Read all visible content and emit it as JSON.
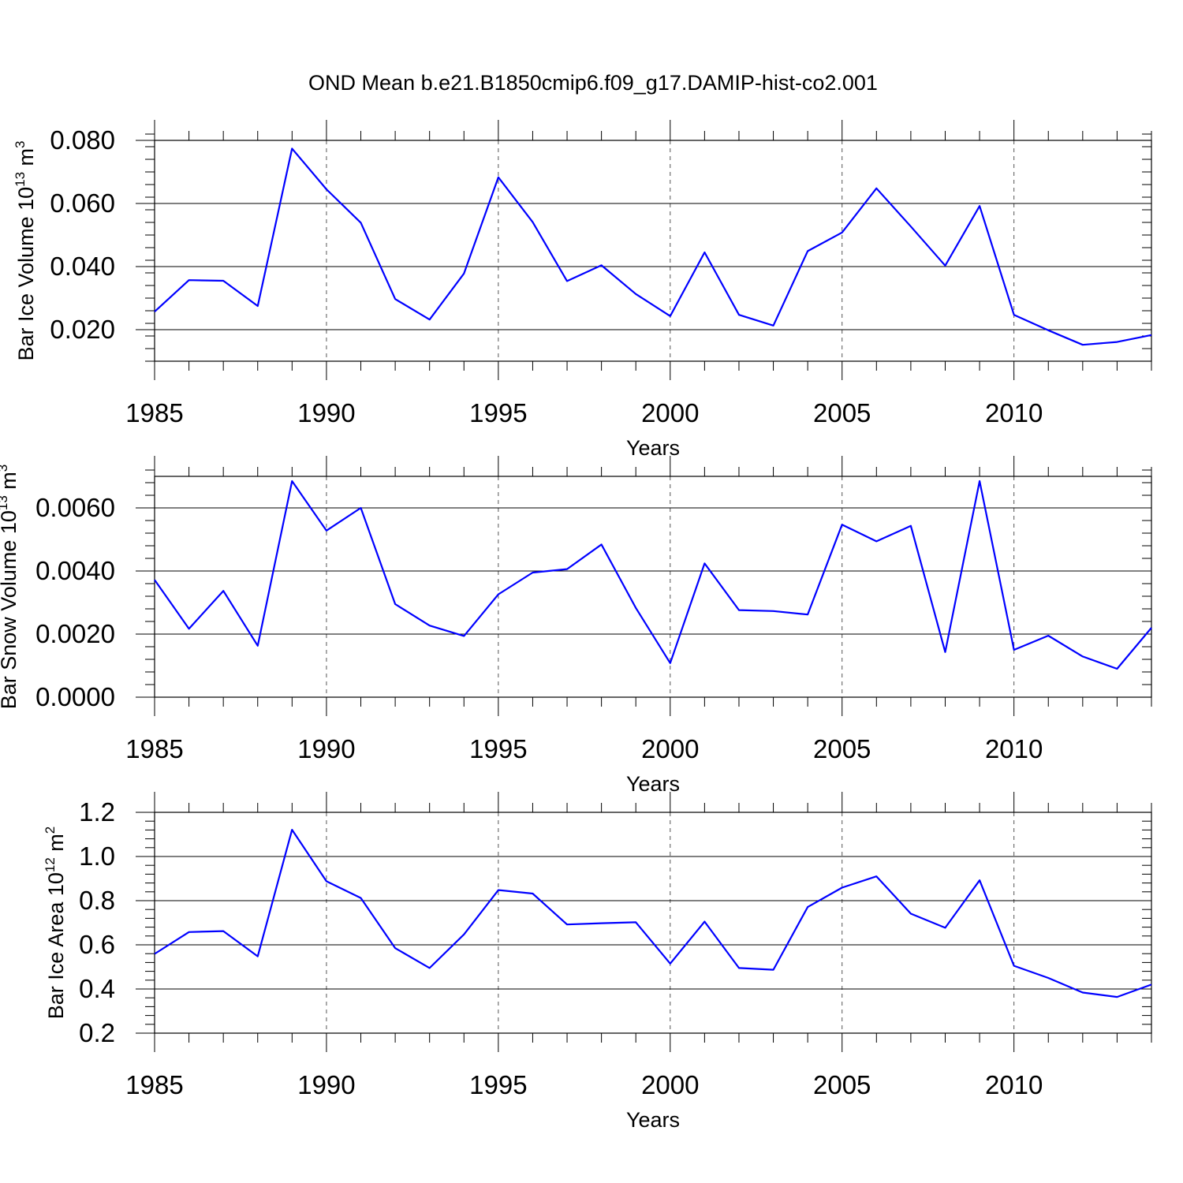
{
  "figure_title": "OND Mean b.e21.B1850cmip6.f09_g17.DAMIP-hist-co2.001",
  "colors": {
    "series": "#0000ff",
    "axis": "#000000",
    "grid": "#555555"
  },
  "chart_data": [
    {
      "type": "line",
      "title": "OND Mean b.e21.B1850cmip6.f09_g17.DAMIP-hist-co2.001",
      "ylabel_main": "Bar Ice Volume 10",
      "ylabel_exp": "13",
      "ylabel_unit": " m",
      "ylabel_unit_exp": "3",
      "xlabel": "Years",
      "xlim": [
        1985,
        2014
      ],
      "ylim": [
        0.01,
        0.08
      ],
      "xticks": [
        1985,
        1990,
        1995,
        2000,
        2005,
        2010
      ],
      "xtick_labels": [
        "1985",
        "1990",
        "1995",
        "2000",
        "2005",
        "2010"
      ],
      "yticks": [
        0.02,
        0.04,
        0.06,
        0.08
      ],
      "ytick_labels": [
        "0.020",
        "0.040",
        "0.060",
        "0.080"
      ],
      "grid_x": [
        1990,
        1995,
        2000,
        2005,
        2010
      ],
      "x": [
        1985,
        1986,
        1987,
        1988,
        1989,
        1990,
        1991,
        1992,
        1993,
        1994,
        1995,
        1996,
        1997,
        1998,
        1999,
        2000,
        2001,
        2002,
        2003,
        2004,
        2005,
        2006,
        2007,
        2008,
        2009,
        2010,
        2011,
        2012,
        2013,
        2014
      ],
      "values": [
        0.0257,
        0.0357,
        0.0355,
        0.0275,
        0.0774,
        0.0645,
        0.0539,
        0.0297,
        0.0232,
        0.0378,
        0.0683,
        0.0541,
        0.0354,
        0.0404,
        0.0313,
        0.0243,
        0.0445,
        0.0247,
        0.0213,
        0.0449,
        0.0508,
        0.0648,
        0.0527,
        0.0403,
        0.0592,
        0.0247,
        0.0198,
        0.0152,
        0.0161,
        0.0183
      ]
    },
    {
      "type": "line",
      "ylabel_main": "Bar Snow Volume 10",
      "ylabel_exp": "13",
      "ylabel_unit": " m",
      "ylabel_unit_exp": "3",
      "xlabel": "Years",
      "xlim": [
        1985,
        2014
      ],
      "ylim": [
        0.0,
        0.007
      ],
      "xticks": [
        1985,
        1990,
        1995,
        2000,
        2005,
        2010
      ],
      "xtick_labels": [
        "1985",
        "1990",
        "1995",
        "2000",
        "2005",
        "2010"
      ],
      "yticks": [
        0.0,
        0.002,
        0.004,
        0.006
      ],
      "ytick_labels": [
        "0.0000",
        "0.0020",
        "0.0040",
        "0.0060"
      ],
      "grid_x": [
        1990,
        1995,
        2000,
        2005,
        2010
      ],
      "x": [
        1985,
        1986,
        1987,
        1988,
        1989,
        1990,
        1991,
        1992,
        1993,
        1994,
        1995,
        1996,
        1997,
        1998,
        1999,
        2000,
        2001,
        2002,
        2003,
        2004,
        2005,
        2006,
        2007,
        2008,
        2009,
        2010,
        2011,
        2012,
        2013,
        2014
      ],
      "values": [
        0.00372,
        0.00217,
        0.00337,
        0.00163,
        0.00685,
        0.00528,
        0.006,
        0.00295,
        0.00227,
        0.00194,
        0.00326,
        0.00395,
        0.00406,
        0.00484,
        0.00283,
        0.00108,
        0.00424,
        0.00276,
        0.00273,
        0.00262,
        0.00547,
        0.00494,
        0.00543,
        0.00143,
        0.00685,
        0.0015,
        0.00195,
        0.00129,
        0.0009,
        0.0022
      ]
    },
    {
      "type": "line",
      "ylabel_main": "Bar Ice Area 10",
      "ylabel_exp": "12",
      "ylabel_unit": " m",
      "ylabel_unit_exp": "2",
      "xlabel": "Years",
      "xlim": [
        1985,
        2014
      ],
      "ylim": [
        0.2,
        1.2
      ],
      "xticks": [
        1985,
        1990,
        1995,
        2000,
        2005,
        2010
      ],
      "xtick_labels": [
        "1985",
        "1990",
        "1995",
        "2000",
        "2005",
        "2010"
      ],
      "yticks": [
        0.2,
        0.4,
        0.6,
        0.8,
        1.0,
        1.2
      ],
      "ytick_labels": [
        "0.2",
        "0.4",
        "0.6",
        "0.8",
        "1.0",
        "1.2"
      ],
      "grid_x": [
        1990,
        1995,
        2000,
        2005,
        2010
      ],
      "x": [
        1985,
        1986,
        1987,
        1988,
        1989,
        1990,
        1991,
        1992,
        1993,
        1994,
        1995,
        1996,
        1997,
        1998,
        1999,
        2000,
        2001,
        2002,
        2003,
        2004,
        2005,
        2006,
        2007,
        2008,
        2009,
        2010,
        2011,
        2012,
        2013,
        2014
      ],
      "values": [
        0.559,
        0.658,
        0.662,
        0.548,
        1.121,
        0.888,
        0.812,
        0.585,
        0.495,
        0.647,
        0.848,
        0.832,
        0.692,
        0.698,
        0.702,
        0.515,
        0.705,
        0.495,
        0.487,
        0.771,
        0.859,
        0.91,
        0.741,
        0.677,
        0.892,
        0.505,
        0.45,
        0.384,
        0.364,
        0.42
      ]
    }
  ]
}
